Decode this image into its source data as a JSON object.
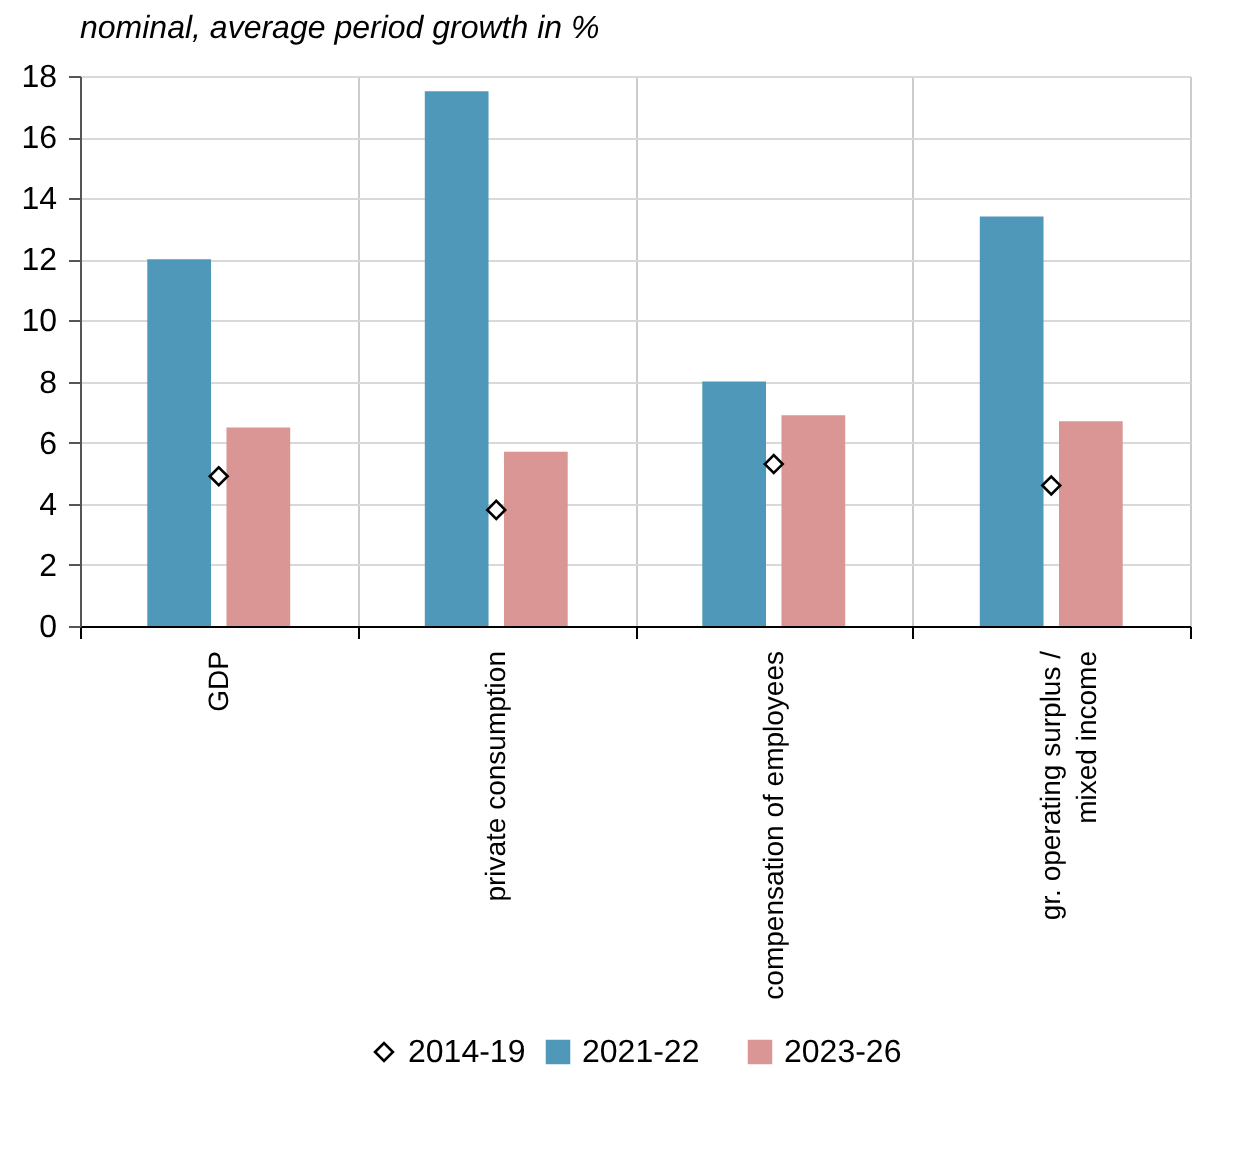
{
  "chart_data": {
    "type": "bar",
    "title": "nominal, average period growth in %",
    "categories": [
      "GDP",
      "private consumption",
      "compensation of employees",
      "gr. operating surplus /\nmixed income"
    ],
    "series": [
      {
        "name": "2021-22",
        "color": "#4f98b9",
        "values": [
          12.0,
          17.5,
          8.0,
          13.4
        ]
      },
      {
        "name": "2023-26",
        "color": "#da9595",
        "values": [
          6.5,
          5.7,
          6.9,
          6.7
        ]
      },
      {
        "name": "2014-19",
        "type": "scatter",
        "marker": "diamond",
        "color": "#000000",
        "values": [
          4.9,
          3.8,
          5.3,
          4.6
        ]
      }
    ],
    "ylim": [
      0,
      18
    ],
    "yticks": [
      0,
      2,
      4,
      6,
      8,
      10,
      12,
      14,
      16,
      18
    ],
    "grid": true,
    "legend": "bottom"
  }
}
